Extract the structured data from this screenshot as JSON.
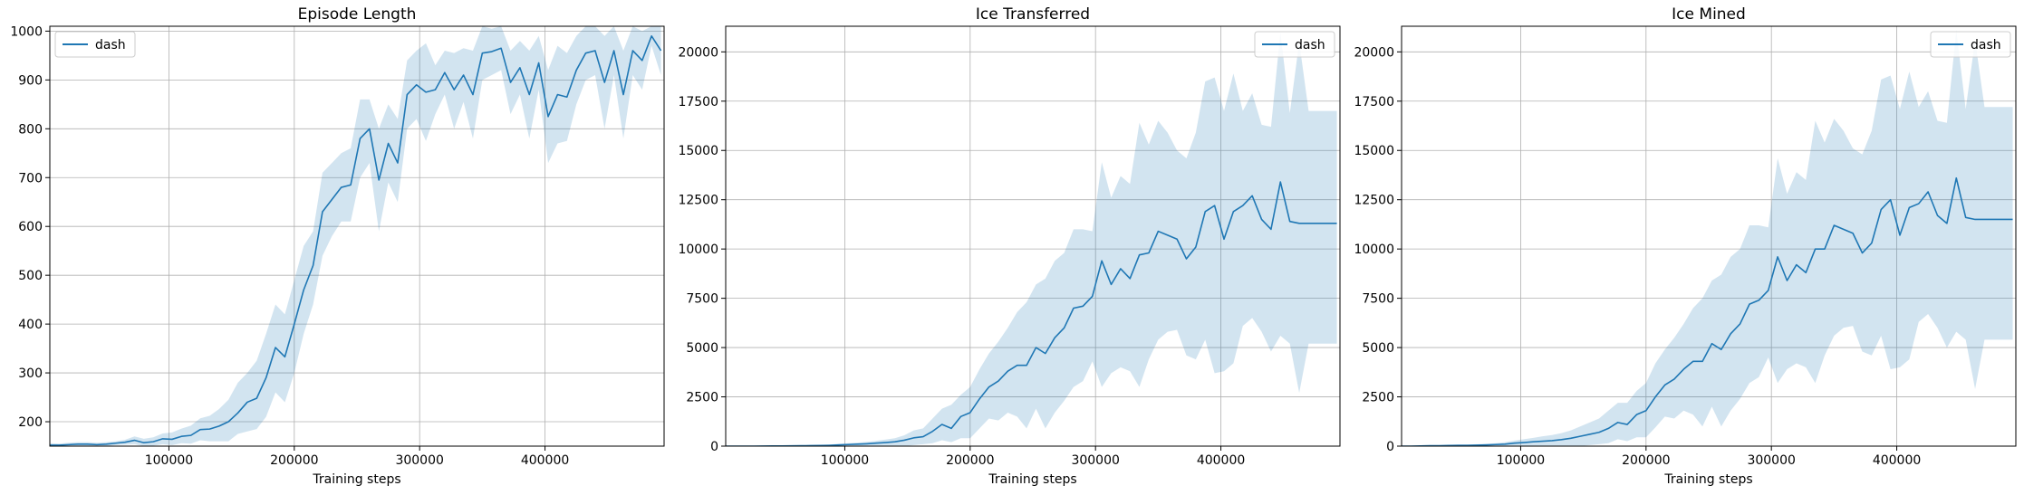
{
  "figure": {
    "colors": {
      "line": "#1f77b4",
      "band": "#1f77b4",
      "grid": "#b0b0b0",
      "axis": "#000000",
      "background": "#ffffff"
    }
  },
  "chart_data": [
    {
      "type": "line",
      "title": "Episode Length",
      "xlabel": "Training steps",
      "ylabel": "",
      "xlim": [
        5000,
        495000
      ],
      "ylim": [
        150,
        1010
      ],
      "xticks": [
        100000,
        200000,
        300000,
        400000
      ],
      "xtick_labels": [
        "100000",
        "200000",
        "300000",
        "400000"
      ],
      "yticks": [
        200,
        300,
        400,
        500,
        600,
        700,
        800,
        900,
        1000
      ],
      "ytick_labels": [
        "200",
        "300",
        "400",
        "500",
        "600",
        "700",
        "800",
        "900",
        "1000"
      ],
      "grid": true,
      "legend_position": "upper left",
      "x": [
        5000,
        12500,
        20000,
        27500,
        35000,
        42500,
        50000,
        57500,
        65000,
        72500,
        80000,
        87500,
        95000,
        102500,
        110000,
        117500,
        125000,
        132500,
        140000,
        147500,
        155000,
        162500,
        170000,
        177500,
        185000,
        192500,
        200000,
        207500,
        215000,
        222500,
        230000,
        237500,
        245000,
        252500,
        260000,
        267500,
        275000,
        282500,
        290000,
        297500,
        305000,
        312500,
        320000,
        327500,
        335000,
        342500,
        350000,
        357500,
        365000,
        372500,
        380000,
        387500,
        395000,
        402500,
        410000,
        417500,
        425000,
        432500,
        440000,
        447500,
        455000,
        462500,
        470000,
        477500,
        485000,
        492500
      ],
      "series": [
        {
          "name": "dash",
          "values": [
            152,
            152,
            153,
            154,
            154,
            153,
            154,
            156,
            158,
            162,
            157,
            159,
            165,
            164,
            170,
            172,
            184,
            185,
            191,
            200,
            218,
            240,
            248,
            290,
            352,
            333,
            400,
            470,
            520,
            630,
            655,
            680,
            685,
            780,
            800,
            695,
            770,
            730,
            870,
            890,
            875,
            880,
            915,
            880,
            910,
            870,
            955,
            958,
            965,
            895,
            925,
            870,
            935,
            825,
            870,
            865,
            920,
            955,
            960,
            895,
            960,
            870,
            960,
            940,
            990,
            960
          ],
          "band_upper": [
            156,
            155,
            157,
            158,
            158,
            157,
            158,
            160,
            163,
            170,
            165,
            168,
            176,
            178,
            186,
            192,
            207,
            212,
            226,
            245,
            280,
            300,
            325,
            380,
            440,
            420,
            490,
            560,
            590,
            710,
            730,
            750,
            760,
            860,
            860,
            800,
            850,
            820,
            940,
            960,
            975,
            930,
            960,
            955,
            965,
            960,
            1010,
            1005,
            1010,
            960,
            980,
            960,
            990,
            920,
            970,
            955,
            990,
            1010,
            1010,
            990,
            1010,
            960,
            1010,
            1000,
            1010,
            1010
          ],
          "band_lower": [
            148,
            149,
            149,
            150,
            150,
            149,
            150,
            152,
            153,
            154,
            150,
            151,
            154,
            152,
            156,
            155,
            162,
            160,
            160,
            160,
            175,
            180,
            185,
            210,
            260,
            240,
            300,
            380,
            440,
            540,
            580,
            610,
            610,
            700,
            730,
            590,
            690,
            650,
            800,
            820,
            775,
            830,
            870,
            800,
            855,
            780,
            900,
            910,
            920,
            830,
            870,
            780,
            880,
            730,
            770,
            775,
            850,
            900,
            910,
            800,
            910,
            780,
            910,
            880,
            970,
            910
          ]
        }
      ]
    },
    {
      "type": "line",
      "title": "Ice Transferred",
      "xlabel": "Training steps",
      "ylabel": "",
      "xlim": [
        5000,
        495000
      ],
      "ylim": [
        0,
        21300
      ],
      "xticks": [
        100000,
        200000,
        300000,
        400000
      ],
      "xtick_labels": [
        "100000",
        "200000",
        "300000",
        "400000"
      ],
      "yticks": [
        0,
        2500,
        5000,
        7500,
        10000,
        12500,
        15000,
        17500,
        20000
      ],
      "ytick_labels": [
        "0",
        "2500",
        "5000",
        "7500",
        "10000",
        "12500",
        "15000",
        "17500",
        "20000"
      ],
      "grid": true,
      "legend_position": "upper right",
      "x": [
        5000,
        12500,
        20000,
        27500,
        35000,
        42500,
        50000,
        57500,
        65000,
        72500,
        80000,
        87500,
        95000,
        102500,
        110000,
        117500,
        125000,
        132500,
        140000,
        147500,
        155000,
        162500,
        170000,
        177500,
        185000,
        192500,
        200000,
        207500,
        215000,
        222500,
        230000,
        237500,
        245000,
        252500,
        260000,
        267500,
        275000,
        282500,
        290000,
        297500,
        305000,
        312500,
        320000,
        327500,
        335000,
        342500,
        350000,
        357500,
        365000,
        372500,
        380000,
        387500,
        395000,
        402500,
        410000,
        417500,
        425000,
        432500,
        440000,
        447500,
        455000,
        462500,
        470000,
        477500,
        485000,
        492500
      ],
      "series": [
        {
          "name": "dash",
          "values": [
            0,
            0,
            0,
            0,
            5,
            10,
            10,
            15,
            20,
            25,
            30,
            40,
            60,
            80,
            100,
            120,
            150,
            180,
            220,
            300,
            420,
            480,
            750,
            1100,
            900,
            1500,
            1700,
            2400,
            3000,
            3300,
            3800,
            4100,
            4100,
            5000,
            4700,
            5500,
            6000,
            7000,
            7100,
            7600,
            9400,
            8200,
            9000,
            8500,
            9700,
            9800,
            10900,
            10700,
            10500,
            9500,
            10100,
            11900,
            12200,
            10500,
            11900,
            12200,
            12700,
            11500,
            11000,
            13400,
            11400,
            11300,
            11300,
            11300,
            11300,
            11300
          ],
          "band_upper": [
            0,
            0,
            0,
            0,
            10,
            20,
            25,
            30,
            40,
            50,
            60,
            80,
            120,
            150,
            180,
            220,
            270,
            330,
            400,
            550,
            800,
            900,
            1400,
            1900,
            2100,
            2600,
            3000,
            3900,
            4700,
            5300,
            6000,
            6800,
            7300,
            8200,
            8500,
            9400,
            9800,
            11000,
            11000,
            10900,
            14400,
            12600,
            13700,
            13300,
            16400,
            15300,
            16500,
            15900,
            15000,
            14600,
            15900,
            18500,
            18700,
            17000,
            18900,
            17000,
            17900,
            16300,
            16200,
            21000,
            16900,
            20500,
            17000,
            17000,
            17000,
            17000
          ],
          "band_lower": [
            0,
            0,
            0,
            0,
            0,
            0,
            0,
            0,
            0,
            0,
            0,
            0,
            0,
            0,
            0,
            0,
            0,
            0,
            0,
            0,
            50,
            100,
            150,
            300,
            200,
            400,
            400,
            900,
            1400,
            1300,
            1700,
            1500,
            900,
            1900,
            900,
            1700,
            2300,
            3000,
            3300,
            4300,
            3000,
            3700,
            4000,
            3800,
            3000,
            4400,
            5400,
            5800,
            5900,
            4600,
            4400,
            5400,
            3700,
            3800,
            4200,
            6100,
            6500,
            5800,
            4800,
            5600,
            5200,
            2700,
            5200,
            5200,
            5200,
            5200
          ]
        }
      ]
    },
    {
      "type": "line",
      "title": "Ice Mined",
      "xlabel": "Training steps",
      "ylabel": "",
      "xlim": [
        5000,
        495000
      ],
      "ylim": [
        0,
        21300
      ],
      "xticks": [
        100000,
        200000,
        300000,
        400000
      ],
      "xtick_labels": [
        "100000",
        "200000",
        "300000",
        "400000"
      ],
      "yticks": [
        0,
        2500,
        5000,
        7500,
        10000,
        12500,
        15000,
        17500,
        20000
      ],
      "ytick_labels": [
        "0",
        "2500",
        "5000",
        "7500",
        "10000",
        "12500",
        "15000",
        "17500",
        "20000"
      ],
      "grid": true,
      "legend_position": "upper right",
      "x": [
        5000,
        12500,
        20000,
        27500,
        35000,
        42500,
        50000,
        57500,
        65000,
        72500,
        80000,
        87500,
        95000,
        102500,
        110000,
        117500,
        125000,
        132500,
        140000,
        147500,
        155000,
        162500,
        170000,
        177500,
        185000,
        192500,
        200000,
        207500,
        215000,
        222500,
        230000,
        237500,
        245000,
        252500,
        260000,
        267500,
        275000,
        282500,
        290000,
        297500,
        305000,
        312500,
        320000,
        327500,
        335000,
        342500,
        350000,
        357500,
        365000,
        372500,
        380000,
        387500,
        395000,
        402500,
        410000,
        417500,
        425000,
        432500,
        440000,
        447500,
        455000,
        462500,
        470000,
        477500,
        485000,
        492500
      ],
      "series": [
        {
          "name": "dash",
          "values": [
            0,
            0,
            10,
            20,
            20,
            30,
            40,
            40,
            50,
            60,
            80,
            100,
            150,
            180,
            220,
            250,
            280,
            330,
            400,
            500,
            600,
            700,
            900,
            1200,
            1100,
            1600,
            1800,
            2500,
            3100,
            3400,
            3900,
            4300,
            4300,
            5200,
            4900,
            5700,
            6200,
            7200,
            7400,
            7900,
            9600,
            8400,
            9200,
            8800,
            10000,
            10000,
            11200,
            11000,
            10800,
            9800,
            10300,
            12000,
            12500,
            10700,
            12100,
            12300,
            12900,
            11700,
            11300,
            13600,
            11600,
            11500,
            11500,
            11500,
            11500,
            11500
          ],
          "band_upper": [
            0,
            0,
            20,
            40,
            40,
            60,
            80,
            80,
            100,
            120,
            150,
            200,
            280,
            350,
            420,
            500,
            560,
            660,
            800,
            1000,
            1200,
            1400,
            1800,
            2200,
            2200,
            2800,
            3200,
            4200,
            4900,
            5500,
            6200,
            7000,
            7500,
            8400,
            8700,
            9600,
            10000,
            11200,
            11200,
            11100,
            14600,
            12800,
            13900,
            13500,
            16500,
            15400,
            16600,
            16000,
            15100,
            14800,
            16000,
            18600,
            18800,
            17100,
            19000,
            17200,
            18000,
            16500,
            16400,
            21100,
            17100,
            20600,
            17200,
            17200,
            17200,
            17200
          ],
          "band_lower": [
            0,
            0,
            0,
            0,
            0,
            0,
            0,
            0,
            0,
            0,
            0,
            0,
            0,
            0,
            0,
            0,
            0,
            0,
            0,
            0,
            50,
            100,
            150,
            350,
            250,
            450,
            450,
            950,
            1500,
            1400,
            1800,
            1600,
            1000,
            2000,
            1000,
            1800,
            2400,
            3200,
            3500,
            4500,
            3200,
            3900,
            4200,
            4000,
            3200,
            4600,
            5600,
            6000,
            6100,
            4800,
            4600,
            5600,
            3900,
            4000,
            4400,
            6300,
            6700,
            6000,
            5000,
            5800,
            5400,
            2900,
            5400,
            5400,
            5400,
            5400
          ]
        }
      ]
    }
  ]
}
